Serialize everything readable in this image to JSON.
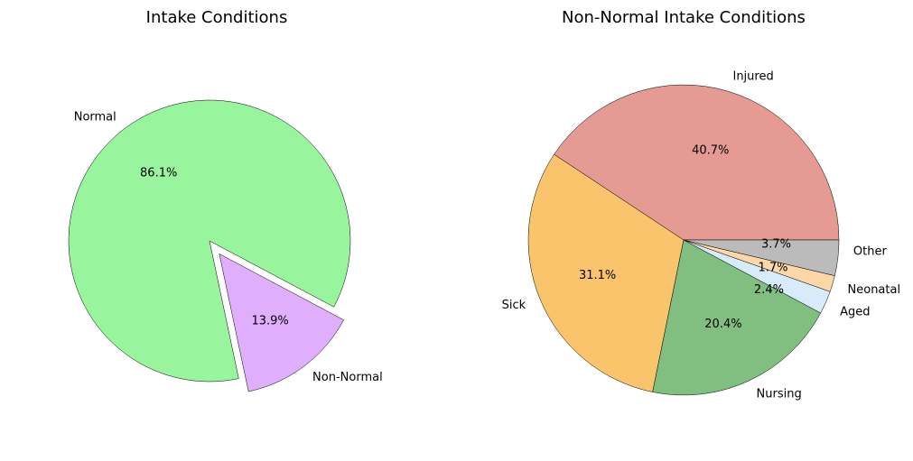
{
  "chart_data": [
    {
      "type": "pie",
      "title": "Intake Conditions",
      "categories": [
        "Normal",
        "Non-Normal"
      ],
      "values": [
        86.1,
        13.9
      ],
      "percent_labels": [
        "86.1%",
        "13.9%"
      ],
      "colors": [
        "#98f59e",
        "#dfaefd"
      ],
      "explode": [
        0,
        1
      ],
      "start_angle_deg": -28,
      "direction": "counterclockwise"
    },
    {
      "type": "pie",
      "title": "Non-Normal Intake Conditions",
      "categories": [
        "Injured",
        "Sick",
        "Nursing",
        "Aged",
        "Neonatal",
        "Other"
      ],
      "values": [
        40.7,
        31.1,
        20.4,
        2.4,
        1.7,
        3.7
      ],
      "percent_labels": [
        "40.7%",
        "31.1%",
        "20.4%",
        "2.4%",
        "1.7%",
        "3.7%"
      ],
      "colors": [
        "#e59a94",
        "#f9c46b",
        "#80bf7f",
        "#d7ebfa",
        "#fed7a6",
        "#bbbbbb"
      ],
      "explode": [
        0,
        0,
        0,
        0,
        0,
        0
      ],
      "start_angle_deg": 0,
      "direction": "counterclockwise"
    }
  ]
}
